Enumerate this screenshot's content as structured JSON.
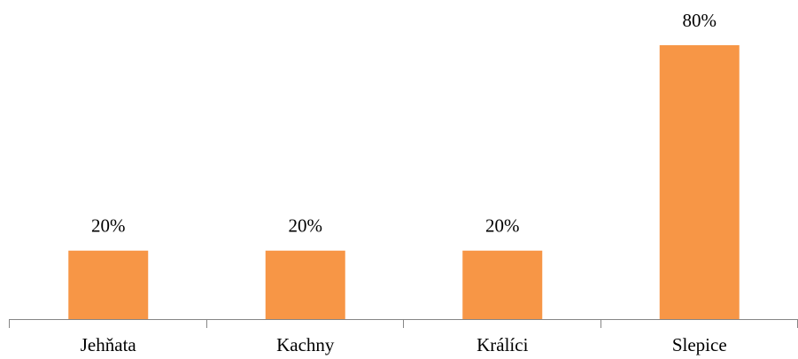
{
  "chart_data": {
    "type": "bar",
    "categories": [
      "Jehňata",
      "Kachny",
      "Králíci",
      "Slepice"
    ],
    "values": [
      20,
      20,
      20,
      80
    ],
    "value_labels": [
      "20%",
      "20%",
      "20%",
      "80%"
    ],
    "color": "#f79646"
  }
}
